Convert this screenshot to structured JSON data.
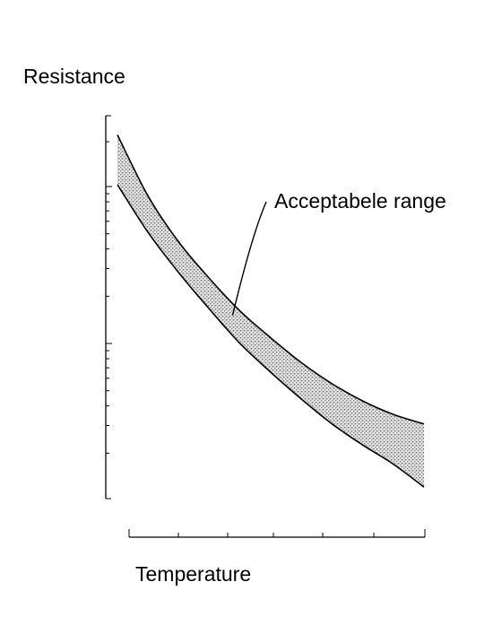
{
  "chart_data": {
    "type": "area",
    "title": "",
    "xlabel": "Temperature",
    "ylabel": "Resistance",
    "yscale": "log",
    "grid": false,
    "legend": "none",
    "annotations": [
      {
        "text": "Acceptabele range",
        "target": "band"
      }
    ],
    "series": [
      {
        "name": "",
        "role": "upper-bound",
        "x": [
          0.0,
          0.1,
          0.2,
          0.3,
          0.4,
          0.5,
          0.6,
          0.7,
          0.8,
          0.9,
          1.0
        ],
        "y": [
          0.95,
          0.79,
          0.67,
          0.575,
          0.49,
          0.42,
          0.355,
          0.3,
          0.255,
          0.22,
          0.195
        ]
      },
      {
        "name": "",
        "role": "lower-bound",
        "x": [
          0.0,
          0.1,
          0.2,
          0.3,
          0.4,
          0.5,
          0.6,
          0.7,
          0.8,
          0.9,
          1.0
        ],
        "y": [
          0.82,
          0.695,
          0.59,
          0.495,
          0.405,
          0.33,
          0.26,
          0.195,
          0.14,
          0.09,
          0.03
        ]
      }
    ],
    "colors": {
      "ink": "#000000",
      "band_fill": "#bdbdbd"
    }
  }
}
